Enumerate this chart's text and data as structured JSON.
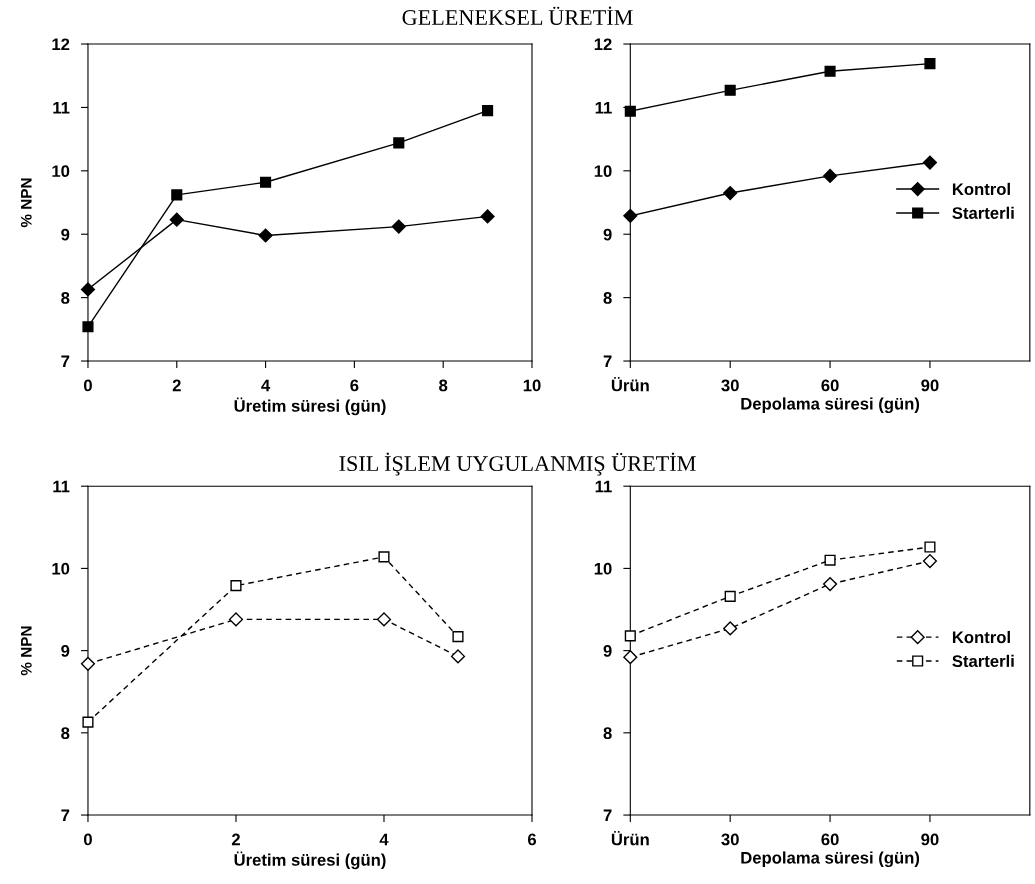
{
  "chart_data": [
    {
      "type": "line",
      "title": "GELENEKSEL ÜRETİM",
      "xlabel": "Üretim süresi (gün)",
      "ylabel": "% NPN",
      "x": [
        0,
        2,
        4,
        7,
        9
      ],
      "xlim": [
        0,
        10
      ],
      "xticks": [
        0,
        2,
        4,
        6,
        8,
        10
      ],
      "ylim": [
        7,
        12
      ],
      "yticks": [
        7,
        8,
        9,
        10,
        11,
        12
      ],
      "grid": false,
      "legend": false,
      "line_style": "solid",
      "series": [
        {
          "color": "#000000",
          "marker": "diamond",
          "values": [
            8.13,
            9.23,
            8.98,
            9.12,
            9.28
          ]
        },
        {
          "color": "#000000",
          "marker": "square",
          "values": [
            7.54,
            9.62,
            9.82,
            10.44,
            10.95
          ]
        }
      ]
    },
    {
      "type": "line",
      "xlabel": "Depolama süresi (gün)",
      "x": [
        0,
        30,
        60,
        90
      ],
      "xlim": [
        0,
        120
      ],
      "xticks": [
        {
          "value": 0,
          "label": "Ürün"
        },
        30,
        60,
        90
      ],
      "ylim": [
        7,
        12
      ],
      "yticks": [
        7,
        8,
        9,
        10,
        11,
        12
      ],
      "grid": false,
      "legend": "right",
      "line_style": "solid",
      "series": [
        {
          "name": "Kontrol",
          "color": "#000000",
          "marker": "diamond",
          "values": [
            9.29,
            9.65,
            9.92,
            10.13
          ]
        },
        {
          "name": "Starterli",
          "color": "#000000",
          "marker": "square",
          "values": [
            10.94,
            11.27,
            11.57,
            11.69
          ]
        }
      ]
    },
    {
      "type": "line",
      "title": "ISIL İŞLEM UYGULANMIŞ ÜRETİM",
      "xlabel": "Üretim süresi (gün)",
      "ylabel": "% NPN",
      "x": [
        0,
        2,
        4,
        5
      ],
      "xlim": [
        0,
        6
      ],
      "xticks": [
        0,
        2,
        4,
        6
      ],
      "ylim": [
        7,
        11
      ],
      "yticks": [
        7,
        8,
        9,
        10,
        11
      ],
      "grid": false,
      "legend": false,
      "line_style": "dashed",
      "series": [
        {
          "color": "#000000",
          "marker": "diamond",
          "values": [
            8.84,
            9.38,
            9.38,
            8.93
          ]
        },
        {
          "color": "#000000",
          "marker": "square",
          "values": [
            8.13,
            9.79,
            10.14,
            9.17
          ]
        }
      ]
    },
    {
      "type": "line",
      "xlabel": "Depolama süresi (gün)",
      "x": [
        0,
        30,
        60,
        90
      ],
      "xlim": [
        0,
        120
      ],
      "xticks": [
        {
          "value": 0,
          "label": "Ürün"
        },
        30,
        60,
        90
      ],
      "ylim": [
        7,
        11
      ],
      "yticks": [
        7,
        8,
        9,
        10,
        11
      ],
      "grid": false,
      "legend": "right",
      "line_style": "dashed",
      "series": [
        {
          "name": "Kontrol",
          "color": "#000000",
          "marker": "diamond",
          "values": [
            8.92,
            9.27,
            9.81,
            10.09
          ]
        },
        {
          "name": "Starterli",
          "color": "#000000",
          "marker": "square",
          "values": [
            9.18,
            9.66,
            10.1,
            10.26
          ]
        }
      ]
    }
  ]
}
